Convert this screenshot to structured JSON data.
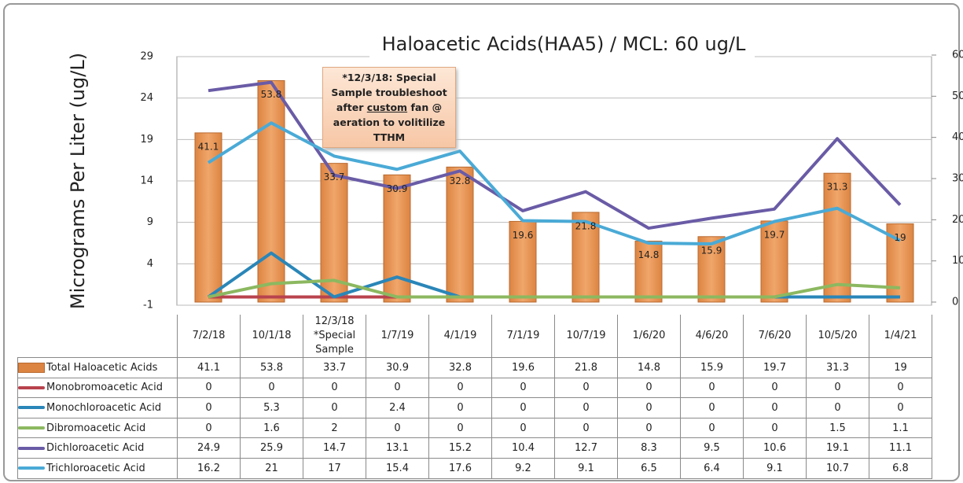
{
  "chart_data": {
    "type": "bar",
    "title": "Haloacetic Acids(HAA5) / MCL: 60 ug/L",
    "y_label": "Micrograms Per Liter (ug/L)",
    "annotation_parts": [
      "*12/3/18: Special Sample troubleshoot after ",
      "custom",
      " fan @ aeration to volitilize TTHM"
    ],
    "categories": [
      "7/2/18",
      "10/1/18",
      "12/3/18 *Special Sample",
      "1/7/19",
      "4/1/19",
      "7/1/19",
      "10/7/19",
      "1/6/20",
      "4/6/20",
      "7/6/20",
      "10/5/20",
      "1/4/21"
    ],
    "ylim": [
      -1,
      29
    ],
    "yticks": [
      -1,
      4,
      9,
      14,
      19,
      24,
      29
    ],
    "y2lim": [
      0,
      60
    ],
    "y2ticks": [
      0,
      10,
      20,
      30,
      40,
      50,
      60
    ],
    "grid": true,
    "series": [
      {
        "name": "Total Haloacetic Acids",
        "type": "bar",
        "axis": "y2",
        "color": "#dc8442",
        "values": [
          41.1,
          53.8,
          33.7,
          30.9,
          32.8,
          19.6,
          21.8,
          14.8,
          15.9,
          19.7,
          31.3,
          19
        ]
      },
      {
        "name": "Monobromoacetic Acid",
        "type": "line",
        "color": "#b8434d",
        "values": [
          0,
          0,
          0,
          0,
          0,
          0,
          0,
          0,
          0,
          0,
          0,
          0
        ]
      },
      {
        "name": "Monochloroacetic Acid",
        "type": "line",
        "color": "#2a86b8",
        "values": [
          0,
          5.3,
          0,
          2.4,
          0,
          0,
          0,
          0,
          0,
          0,
          0,
          0
        ]
      },
      {
        "name": "Dibromoacetic Acid",
        "type": "line",
        "color": "#8cb860",
        "values": [
          0,
          1.6,
          2,
          0,
          0,
          0,
          0,
          0,
          0,
          0,
          1.5,
          1.1
        ]
      },
      {
        "name": "Dichloroacetic Acid",
        "type": "line",
        "color": "#6a5ba6",
        "values": [
          24.9,
          25.9,
          14.7,
          13.1,
          15.2,
          10.4,
          12.7,
          8.3,
          9.5,
          10.6,
          19.1,
          11.1
        ]
      },
      {
        "name": "Trichloroacetic Acid",
        "type": "line",
        "color": "#4aaad6",
        "values": [
          16.2,
          21,
          17,
          15.4,
          17.6,
          9.2,
          9.1,
          6.5,
          6.4,
          9.1,
          10.7,
          6.8
        ]
      }
    ]
  }
}
